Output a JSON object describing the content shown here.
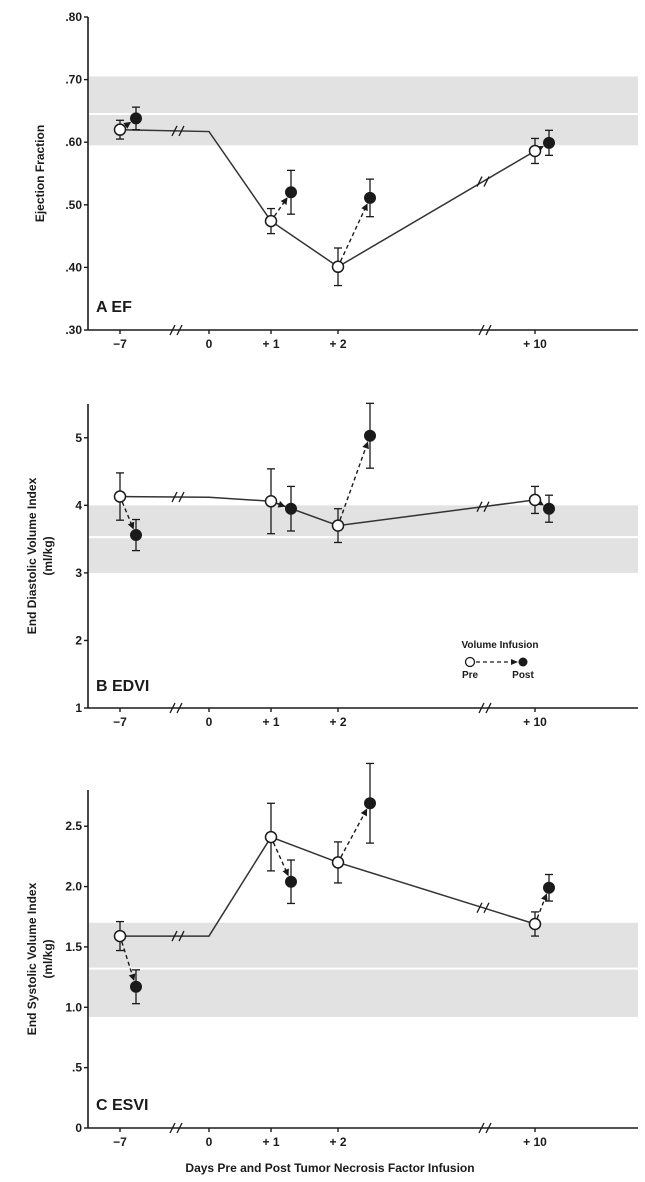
{
  "figure": {
    "xlabel": "Days Pre and Post Tumor Necrosis Factor Infusion",
    "x_ticks": [
      {
        "label": "−7"
      },
      {
        "label": "0"
      },
      {
        "label": "+ 1"
      },
      {
        "label": "+ 2"
      },
      {
        "label": "+ 10"
      }
    ],
    "legend": {
      "title": "Volume Infusion",
      "pre_label": "Pre",
      "post_label": "Post"
    }
  },
  "chart_data": [
    {
      "type": "line",
      "panel_label": "A EF",
      "ylabel": "Ejection Fraction",
      "ylim": [
        0.3,
        0.8
      ],
      "y_ticks": [
        {
          "value": 0.3,
          "label": ".30"
        },
        {
          "value": 0.4,
          "label": ".40"
        },
        {
          "value": 0.5,
          "label": ".50"
        },
        {
          "value": 0.6,
          "label": ".60"
        },
        {
          "value": 0.7,
          "label": ".70"
        },
        {
          "value": 0.8,
          "label": ".80"
        }
      ],
      "normal_band": [
        0.595,
        0.705
      ],
      "normal_line": 0.645,
      "x_categories": [
        "−7",
        "0",
        "+ 1",
        "+ 2",
        "+ 10"
      ],
      "pre_line": [
        {
          "day": "−7",
          "y": 0.62
        },
        {
          "day": "0",
          "y": 0.617
        },
        {
          "day": "+ 1",
          "y": 0.474
        },
        {
          "day": "+ 2",
          "y": 0.401
        },
        {
          "day": "+ 10",
          "y": 0.586
        }
      ],
      "pre_points": [
        {
          "day": "−7",
          "y": 0.62,
          "err": 0.015
        },
        {
          "day": "+ 1",
          "y": 0.474,
          "err": 0.02
        },
        {
          "day": "+ 2",
          "y": 0.401,
          "err": 0.03
        },
        {
          "day": "+ 10",
          "y": 0.586,
          "err": 0.02
        }
      ],
      "post_points": [
        {
          "day": "−7",
          "y": 0.638,
          "err": 0.018
        },
        {
          "day": "+ 1",
          "y": 0.52,
          "err": 0.035
        },
        {
          "day": "+ 2",
          "y": 0.511,
          "err": 0.03
        },
        {
          "day": "+ 10",
          "y": 0.599,
          "err": 0.02
        }
      ]
    },
    {
      "type": "line",
      "panel_label": "B EDVI",
      "ylabel": "End Diastolic Volume Index",
      "ylabel_unit": "(ml/kg)",
      "ylim": [
        1,
        5.5
      ],
      "y_ticks": [
        {
          "value": 1,
          "label": "1"
        },
        {
          "value": 2,
          "label": "2"
        },
        {
          "value": 3,
          "label": "3"
        },
        {
          "value": 4,
          "label": "4"
        },
        {
          "value": 5,
          "label": "5"
        }
      ],
      "normal_band": [
        3.0,
        4.0
      ],
      "normal_line": 3.53,
      "x_categories": [
        "−7",
        "0",
        "+ 1",
        "+ 2",
        "+ 10"
      ],
      "pre_line": [
        {
          "day": "−7",
          "y": 4.13
        },
        {
          "day": "0",
          "y": 4.12
        },
        {
          "day": "+ 1",
          "y": 4.06
        },
        {
          "day": "+ 2",
          "y": 3.7
        },
        {
          "day": "+ 10",
          "y": 4.08
        }
      ],
      "pre_points": [
        {
          "day": "−7",
          "y": 4.13,
          "err": 0.35
        },
        {
          "day": "+ 1",
          "y": 4.06,
          "err": 0.48
        },
        {
          "day": "+ 2",
          "y": 3.7,
          "err": 0.25
        },
        {
          "day": "+ 10",
          "y": 4.08,
          "err": 0.2
        }
      ],
      "post_points": [
        {
          "day": "−7",
          "y": 3.56,
          "err": 0.23
        },
        {
          "day": "+ 1",
          "y": 3.95,
          "err": 0.33
        },
        {
          "day": "+ 2",
          "y": 5.03,
          "err": 0.48
        },
        {
          "day": "+ 10",
          "y": 3.95,
          "err": 0.2
        }
      ]
    },
    {
      "type": "line",
      "panel_label": "C ESVI",
      "ylabel": "End Systolic Volume Index",
      "ylabel_unit": "(ml/kg)",
      "ylim": [
        0,
        2.8
      ],
      "y_ticks": [
        {
          "value": 0,
          "label": "0"
        },
        {
          "value": 0.5,
          "label": ".5"
        },
        {
          "value": 1.0,
          "label": "1.0"
        },
        {
          "value": 1.5,
          "label": "1.5"
        },
        {
          "value": 2.0,
          "label": "2.0"
        },
        {
          "value": 2.5,
          "label": "2.5"
        }
      ],
      "normal_band": [
        0.92,
        1.7
      ],
      "normal_line": 1.32,
      "x_categories": [
        "−7",
        "0",
        "+ 1",
        "+ 2",
        "+ 10"
      ],
      "pre_line": [
        {
          "day": "−7",
          "y": 1.59
        },
        {
          "day": "0",
          "y": 1.59
        },
        {
          "day": "+ 1",
          "y": 2.41
        },
        {
          "day": "+ 2",
          "y": 2.2
        },
        {
          "day": "+ 10",
          "y": 1.69
        }
      ],
      "pre_points": [
        {
          "day": "−7",
          "y": 1.59,
          "err": 0.12
        },
        {
          "day": "+ 1",
          "y": 2.41,
          "err": 0.28
        },
        {
          "day": "+ 2",
          "y": 2.2,
          "err": 0.17
        },
        {
          "day": "+ 10",
          "y": 1.69,
          "err": 0.1
        }
      ],
      "post_points": [
        {
          "day": "−7",
          "y": 1.17,
          "err": 0.14
        },
        {
          "day": "+ 1",
          "y": 2.04,
          "err": 0.18
        },
        {
          "day": "+ 2",
          "y": 2.69,
          "err": 0.33
        },
        {
          "day": "+ 10",
          "y": 1.99,
          "err": 0.11
        }
      ]
    }
  ]
}
